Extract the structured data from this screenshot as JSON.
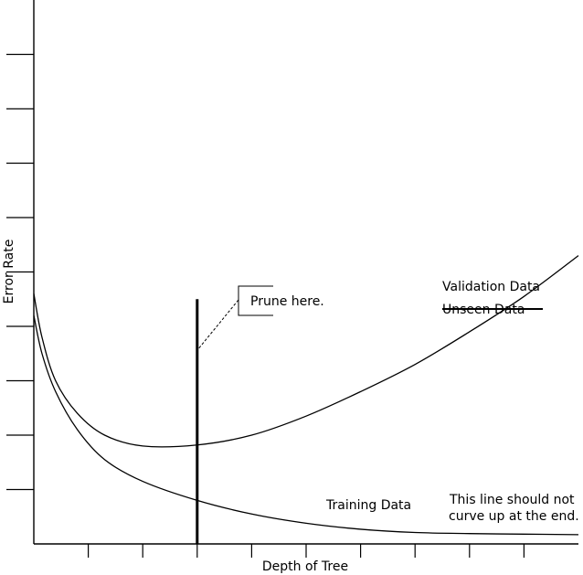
{
  "chart_data": {
    "type": "line",
    "title": "",
    "xlabel": "Depth of Tree",
    "ylabel": "Error Rate",
    "xlim": [
      0,
      10
    ],
    "ylim": [
      0,
      10
    ],
    "x_tick_count": 10,
    "y_tick_count": 10,
    "tick_labels_shown": false,
    "grid": false,
    "series": [
      {
        "name": "Validation Data",
        "values": [
          {
            "x": 0,
            "y": 4.6
          },
          {
            "x": 0.15,
            "y": 3.8
          },
          {
            "x": 0.4,
            "y": 3.0
          },
          {
            "x": 0.8,
            "y": 2.4
          },
          {
            "x": 1.3,
            "y": 2.0
          },
          {
            "x": 2.0,
            "y": 1.8
          },
          {
            "x": 3.0,
            "y": 1.82
          },
          {
            "x": 4.0,
            "y": 2.0
          },
          {
            "x": 5.0,
            "y": 2.35
          },
          {
            "x": 6.0,
            "y": 2.8
          },
          {
            "x": 7.0,
            "y": 3.3
          },
          {
            "x": 8.0,
            "y": 3.9
          },
          {
            "x": 9.0,
            "y": 4.55
          },
          {
            "x": 10.0,
            "y": 5.3
          }
        ]
      },
      {
        "name": "Training Data",
        "values": [
          {
            "x": 0,
            "y": 4.2
          },
          {
            "x": 0.15,
            "y": 3.5
          },
          {
            "x": 0.4,
            "y": 2.8
          },
          {
            "x": 0.8,
            "y": 2.1
          },
          {
            "x": 1.3,
            "y": 1.55
          },
          {
            "x": 2.0,
            "y": 1.15
          },
          {
            "x": 3.0,
            "y": 0.8
          },
          {
            "x": 4.0,
            "y": 0.55
          },
          {
            "x": 5.0,
            "y": 0.38
          },
          {
            "x": 6.0,
            "y": 0.27
          },
          {
            "x": 7.0,
            "y": 0.21
          },
          {
            "x": 8.0,
            "y": 0.19
          },
          {
            "x": 9.0,
            "y": 0.18
          },
          {
            "x": 10.0,
            "y": 0.17
          }
        ]
      }
    ],
    "prune_marker": {
      "x": 3.0,
      "y_top": 4.5,
      "leader_y": 3.6
    },
    "annotations": {
      "prune_label": "Prune here.",
      "validation_label": "Validation Data",
      "unseen_label": "Unseen Data",
      "training_label": "Training Data",
      "note_line1": "This line should not",
      "note_line2": "curve up at the end."
    }
  }
}
